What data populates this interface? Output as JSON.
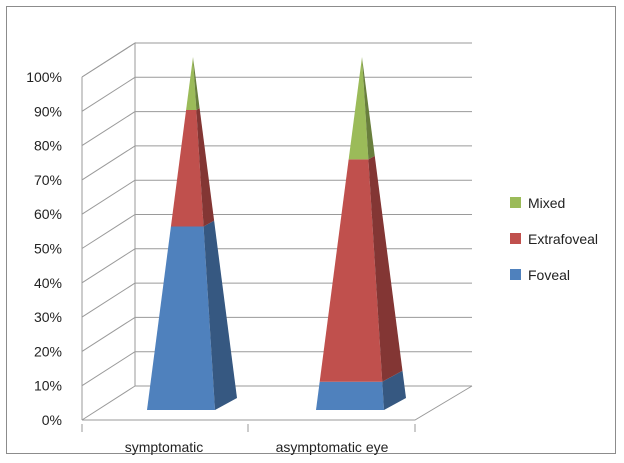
{
  "chart_data": {
    "type": "bar",
    "subtype": "3d-stacked-100-pyramid",
    "categories": [
      "symptomatic",
      "asymptomatic eye"
    ],
    "series": [
      {
        "name": "Foveal",
        "values": [
          52,
          8
        ],
        "color": "#4F81BD"
      },
      {
        "name": "Extrafoveal",
        "values": [
          33,
          63
        ],
        "color": "#C0504D"
      },
      {
        "name": "Mixed",
        "values": [
          15,
          29
        ],
        "color": "#9BBB59"
      }
    ],
    "y_ticks": [
      "0%",
      "10%",
      "20%",
      "30%",
      "40%",
      "50%",
      "60%",
      "70%",
      "80%",
      "90%",
      "100%"
    ],
    "ylim": [
      0,
      100
    ],
    "grid": true,
    "legend_position": "right",
    "legend_order": [
      "Mixed",
      "Extrafoveal",
      "Foveal"
    ],
    "title": "",
    "xlabel": "",
    "ylabel": ""
  }
}
